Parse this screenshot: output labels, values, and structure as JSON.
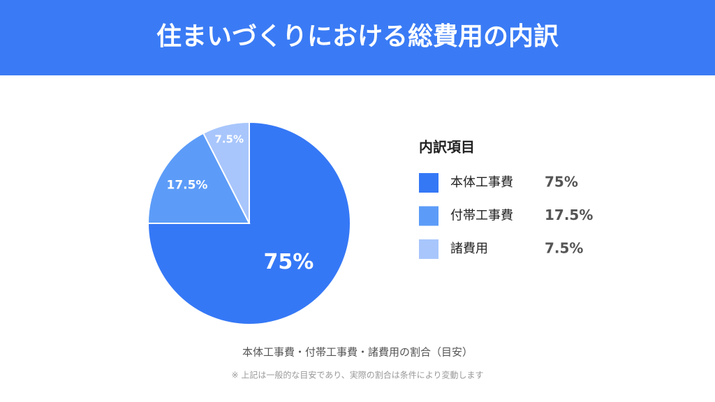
{
  "chart_data": {
    "type": "pie",
    "title": "住まいづくりにおける総費用の内訳",
    "legend_title": "内訳項目",
    "categories": [
      "本体工事費",
      "付帯工事費",
      "諸費用"
    ],
    "values": [
      75,
      17.5,
      7.5
    ],
    "value_labels": [
      "75%",
      "17.5%",
      "7.5%"
    ],
    "colors": [
      "#3578f6",
      "#5c9cf8",
      "#a8c6fc"
    ],
    "caption": "本体工事費・付帯工事費・諸費用の割合（目安）",
    "note": "※ 上記は一般的な目安であり、実際の割合は条件により変動します"
  }
}
